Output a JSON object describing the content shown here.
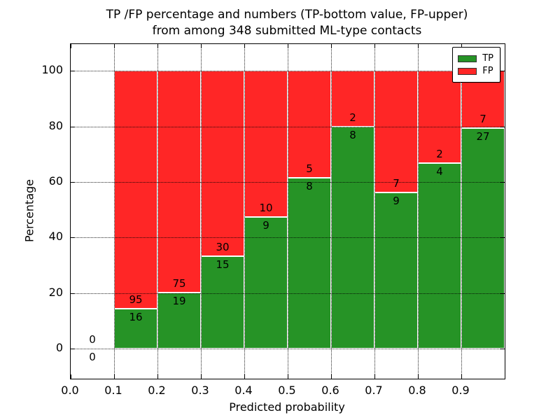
{
  "chart_data": {
    "type": "bar",
    "variant": "stacked-percentage",
    "title_line1": "TP /FP percentage and numbers (TP-bottom value, FP-upper)",
    "title_line2": "from among 348 submitted ML-type contacts",
    "xlabel": "Predicted probability",
    "ylabel": "Percentage",
    "xlim": [
      0.0,
      1.0
    ],
    "ylim": [
      -10.8,
      109.6
    ],
    "x_tick_labels": [
      "0.0",
      "0.1",
      "0.2",
      "0.3",
      "0.4",
      "0.5",
      "0.6",
      "0.7",
      "0.8",
      "0.9"
    ],
    "x_tick_values": [
      0.0,
      0.1,
      0.2,
      0.3,
      0.4,
      0.5,
      0.6,
      0.7,
      0.8,
      0.9
    ],
    "y_ticks": [
      0,
      20,
      40,
      60,
      80,
      100
    ],
    "grid": "dotted",
    "tp_color": "#269326",
    "fp_color": "#ff2626",
    "legend": {
      "position": "upper-right",
      "entries": [
        {
          "label": "TP",
          "color": "#269326"
        },
        {
          "label": "FP",
          "color": "#ff2626"
        }
      ]
    },
    "bins": [
      {
        "x_start": 0.0,
        "x_end": 0.1,
        "tp": 0,
        "fp": 0
      },
      {
        "x_start": 0.1,
        "x_end": 0.2,
        "tp": 16,
        "fp": 95
      },
      {
        "x_start": 0.2,
        "x_end": 0.3,
        "tp": 19,
        "fp": 75
      },
      {
        "x_start": 0.3,
        "x_end": 0.4,
        "tp": 15,
        "fp": 30
      },
      {
        "x_start": 0.4,
        "x_end": 0.5,
        "tp": 9,
        "fp": 10
      },
      {
        "x_start": 0.5,
        "x_end": 0.6,
        "tp": 8,
        "fp": 5
      },
      {
        "x_start": 0.6,
        "x_end": 0.7,
        "tp": 8,
        "fp": 2
      },
      {
        "x_start": 0.7,
        "x_end": 0.8,
        "tp": 9,
        "fp": 7
      },
      {
        "x_start": 0.8,
        "x_end": 0.9,
        "tp": 4,
        "fp": 2
      },
      {
        "x_start": 0.9,
        "x_end": 1.0,
        "tp": 27,
        "fp": 7
      }
    ]
  }
}
